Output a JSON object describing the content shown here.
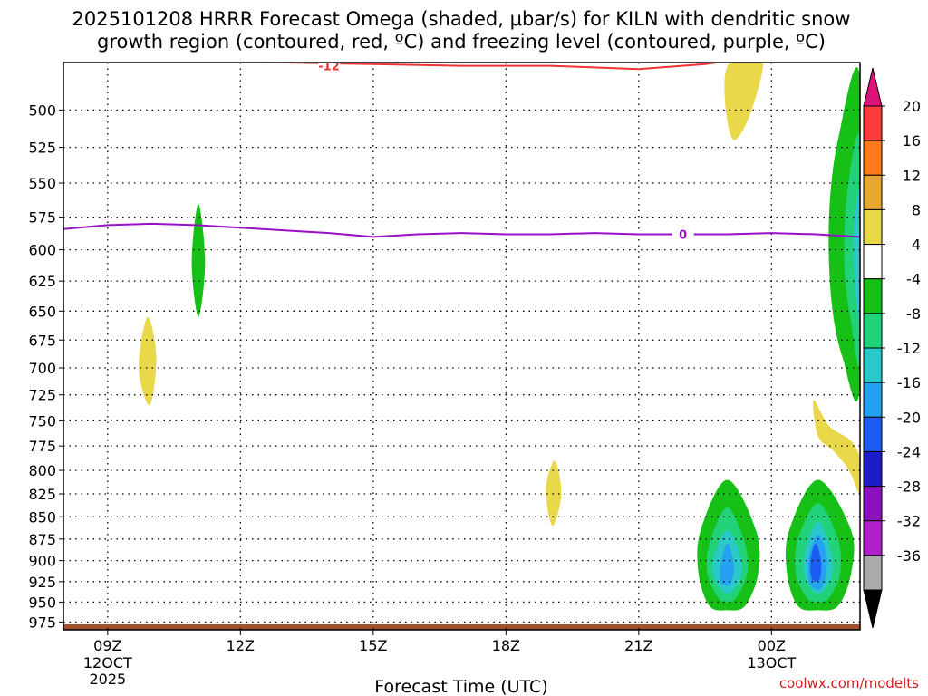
{
  "chart_data": {
    "type": "contour",
    "title_line1": "2025101208 HRRR Forecast Omega (shaded, μbar/s) for KILN with dendritic snow",
    "title_line2": "growth region (contoured, red, ºC) and freezing level (contoured, purple, ºC)",
    "xlabel": "Forecast Time (UTC)",
    "credit": "coolwx.com/modelts",
    "x_ticks": [
      {
        "label": "09Z",
        "sub1": "12OCT",
        "sub2": "2025",
        "hour": 9
      },
      {
        "label": "12Z",
        "sub1": "",
        "sub2": "",
        "hour": 12
      },
      {
        "label": "15Z",
        "sub1": "",
        "sub2": "",
        "hour": 15
      },
      {
        "label": "18Z",
        "sub1": "",
        "sub2": "",
        "hour": 18
      },
      {
        "label": "21Z",
        "sub1": "",
        "sub2": "",
        "hour": 21
      },
      {
        "label": "00Z",
        "sub1": "13OCT",
        "sub2": "",
        "hour": 24
      }
    ],
    "x_range_hours": [
      8,
      26
    ],
    "y_ticks": [
      "500",
      "525",
      "550",
      "575",
      "600",
      "625",
      "650",
      "675",
      "700",
      "725",
      "750",
      "775",
      "800",
      "825",
      "850",
      "875",
      "900",
      "925",
      "950",
      "975"
    ],
    "y_range_hpa": [
      470,
      985
    ],
    "colorbar": {
      "labels": [
        "20",
        "16",
        "12",
        "8",
        "4",
        "-4",
        "-8",
        "-12",
        "-16",
        "-20",
        "-24",
        "-28",
        "-32",
        "-36"
      ],
      "colors": [
        "#ff3b3b",
        "#ff7a1a",
        "#e8a830",
        "#e8d84a",
        "#ffffff",
        "#16c016",
        "#22d278",
        "#2ac8c8",
        "#26a0f0",
        "#1c5cf0",
        "#1c1cc8",
        "#8a10c0",
        "#b020c8",
        "#aaaaaa"
      ],
      "top_cap_color": "#e0107a",
      "bottom_cap_color": "#000000"
    },
    "contours": [
      {
        "name": "dgz-minus12",
        "label": "-12",
        "color": "#ee3333",
        "points": [
          [
            8.0,
            466
          ],
          [
            9.5,
            468
          ],
          [
            11.0,
            469
          ],
          [
            13.0,
            470
          ],
          [
            15.0,
            471
          ],
          [
            17.0,
            472
          ],
          [
            19.0,
            472
          ],
          [
            21.0,
            474
          ],
          [
            22.5,
            471
          ],
          [
            23.8,
            466
          ]
        ]
      },
      {
        "name": "freezing-level-0",
        "label": "0",
        "color": "#9a10c8",
        "points": [
          [
            8.0,
            584
          ],
          [
            9.0,
            581
          ],
          [
            10.0,
            580
          ],
          [
            11.0,
            581
          ],
          [
            12.0,
            583
          ],
          [
            13.0,
            585
          ],
          [
            14.0,
            587
          ],
          [
            15.0,
            590
          ],
          [
            16.0,
            588
          ],
          [
            17.0,
            587
          ],
          [
            18.0,
            588
          ],
          [
            19.0,
            588
          ],
          [
            20.0,
            587
          ],
          [
            21.0,
            588
          ],
          [
            22.0,
            588
          ],
          [
            23.0,
            588
          ],
          [
            24.0,
            587
          ],
          [
            25.0,
            588
          ],
          [
            26.0,
            590
          ]
        ]
      }
    ],
    "shaded_regions": [
      {
        "name": "omega-yellow-01",
        "value": 4,
        "color": "#e8d84a",
        "points": [
          [
            9.9,
            655
          ],
          [
            10.1,
            690
          ],
          [
            9.95,
            735
          ],
          [
            9.7,
            700
          ]
        ]
      },
      {
        "name": "omega-green-01",
        "value": -4,
        "color": "#16c016",
        "points": [
          [
            11.05,
            565
          ],
          [
            11.2,
            610
          ],
          [
            11.05,
            655
          ],
          [
            10.9,
            610
          ]
        ]
      },
      {
        "name": "omega-yellow-02",
        "value": 4,
        "color": "#e8d84a",
        "points": [
          [
            19.1,
            790
          ],
          [
            19.25,
            825
          ],
          [
            19.05,
            860
          ],
          [
            18.9,
            820
          ]
        ]
      },
      {
        "name": "omega-yellow-03",
        "value": 4,
        "color": "#e8d84a",
        "points": [
          [
            23.8,
            466
          ],
          [
            23.55,
            500
          ],
          [
            23.15,
            520
          ],
          [
            22.95,
            495
          ],
          [
            23.05,
            470
          ]
        ]
      },
      {
        "name": "omega-yellow-04",
        "value": 4,
        "color": "#e8d84a",
        "points": [
          [
            24.95,
            730
          ],
          [
            25.3,
            755
          ],
          [
            25.8,
            770
          ],
          [
            26.0,
            790
          ],
          [
            26.0,
            825
          ],
          [
            25.75,
            800
          ],
          [
            25.4,
            780
          ],
          [
            25.05,
            765
          ]
        ]
      },
      {
        "name": "omega-green-02",
        "value": -4,
        "color": "#16c016",
        "points": [
          [
            26.0,
            480
          ],
          [
            25.5,
            520
          ],
          [
            25.3,
            575
          ],
          [
            25.35,
            640
          ],
          [
            25.6,
            690
          ],
          [
            26.0,
            715
          ]
        ]
      },
      {
        "name": "omega-teal-02",
        "value": -8,
        "color": "#22d278",
        "points": [
          [
            26.0,
            520
          ],
          [
            25.7,
            560
          ],
          [
            25.65,
            615
          ],
          [
            25.8,
            660
          ],
          [
            26.0,
            690
          ]
        ]
      },
      {
        "name": "omega-cyan-02",
        "value": -12,
        "color": "#2ac8c8",
        "points": [
          [
            26.0,
            555
          ],
          [
            25.85,
            590
          ],
          [
            25.9,
            635
          ],
          [
            26.0,
            655
          ]
        ]
      },
      {
        "name": "omega-green-03",
        "value": -4,
        "color": "#16c016",
        "points": [
          [
            23.0,
            810
          ],
          [
            23.65,
            865
          ],
          [
            23.7,
            915
          ],
          [
            23.4,
            955
          ],
          [
            23.0,
            960
          ],
          [
            22.6,
            955
          ],
          [
            22.35,
            915
          ],
          [
            22.4,
            865
          ]
        ]
      },
      {
        "name": "omega-teal-03",
        "value": -8,
        "color": "#22d278",
        "points": [
          [
            23.0,
            840
          ],
          [
            23.4,
            880
          ],
          [
            23.45,
            915
          ],
          [
            23.2,
            945
          ],
          [
            23.0,
            950
          ],
          [
            22.8,
            945
          ],
          [
            22.55,
            915
          ],
          [
            22.6,
            880
          ]
        ]
      },
      {
        "name": "omega-cyan-03",
        "value": -12,
        "color": "#2ac8c8",
        "points": [
          [
            23.0,
            865
          ],
          [
            23.3,
            895
          ],
          [
            23.3,
            920
          ],
          [
            23.0,
            940
          ],
          [
            22.7,
            920
          ],
          [
            22.7,
            895
          ]
        ]
      },
      {
        "name": "omega-blue-03",
        "value": -16,
        "color": "#26a0f0",
        "points": [
          [
            23.0,
            880
          ],
          [
            23.15,
            905
          ],
          [
            23.1,
            925
          ],
          [
            23.0,
            930
          ],
          [
            22.85,
            925
          ],
          [
            22.85,
            905
          ]
        ]
      },
      {
        "name": "omega-green-04",
        "value": -4,
        "color": "#16c016",
        "points": [
          [
            25.05,
            810
          ],
          [
            25.8,
            865
          ],
          [
            25.8,
            915
          ],
          [
            25.5,
            955
          ],
          [
            25.05,
            960
          ],
          [
            24.6,
            955
          ],
          [
            24.35,
            915
          ],
          [
            24.4,
            865
          ]
        ]
      },
      {
        "name": "omega-teal-04",
        "value": -8,
        "color": "#22d278",
        "points": [
          [
            25.05,
            835
          ],
          [
            25.5,
            875
          ],
          [
            25.55,
            915
          ],
          [
            25.3,
            945
          ],
          [
            25.05,
            950
          ],
          [
            24.8,
            945
          ],
          [
            24.55,
            915
          ],
          [
            24.6,
            875
          ]
        ]
      },
      {
        "name": "omega-cyan-04",
        "value": -12,
        "color": "#2ac8c8",
        "points": [
          [
            25.05,
            855
          ],
          [
            25.35,
            890
          ],
          [
            25.35,
            920
          ],
          [
            25.05,
            940
          ],
          [
            24.75,
            920
          ],
          [
            24.75,
            890
          ]
        ]
      },
      {
        "name": "omega-blue-04",
        "value": -16,
        "color": "#26a0f0",
        "points": [
          [
            25.05,
            870
          ],
          [
            25.25,
            895
          ],
          [
            25.2,
            925
          ],
          [
            25.05,
            935
          ],
          [
            24.85,
            925
          ],
          [
            24.85,
            895
          ]
        ]
      },
      {
        "name": "omega-dblue-04",
        "value": -20,
        "color": "#1c5cf0",
        "points": [
          [
            25.0,
            880
          ],
          [
            25.12,
            900
          ],
          [
            25.1,
            920
          ],
          [
            25.0,
            925
          ],
          [
            24.9,
            920
          ],
          [
            24.88,
            900
          ]
        ]
      }
    ],
    "ground": {
      "name": "ground-terrain",
      "color": "#a0522d",
      "top_hpa": 978
    }
  }
}
